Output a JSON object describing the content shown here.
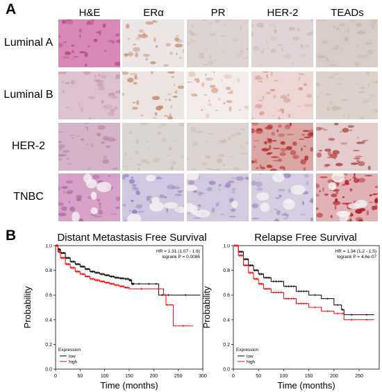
{
  "panel_a": {
    "letter": "A",
    "columns": [
      "H&E",
      "ERα",
      "PR",
      "HER-2",
      "TEADs"
    ],
    "rows": [
      "Luminal A",
      "Luminal B",
      "HER-2",
      "TNBC"
    ],
    "tiles": [
      [
        "#d88ab4",
        "#ece6e6",
        "#ddd3d1",
        "#e2d4d6",
        "#d8ccc8"
      ],
      [
        "#ddc3cf",
        "#ece5e2",
        "#f3ecea",
        "#ecd7d4",
        "#dcd2cb"
      ],
      [
        "#d3b4c8",
        "#dbd5d2",
        "#ddd3d1",
        "#dba7a5",
        "#e2cccc"
      ],
      [
        "#d6a2c6",
        "#cfc8e0",
        "#d4cadf",
        "#d6cde0",
        "#e1b2b5"
      ]
    ],
    "tile_accents": [
      [
        "#b8408a",
        "#c9957b",
        "#cbbdb8",
        "#cdbcbc",
        "#c6b8b2"
      ],
      [
        "#c79ab3",
        "#c98a6e",
        "#dca690",
        "#d89a90",
        "#cbbcb2"
      ],
      [
        "#b9889f",
        "#c9c0ba",
        "#cbbdb8",
        "#b5302f",
        "#b23a3a"
      ],
      [
        "#b06aa6",
        "#8f7fba",
        "#9a89bf",
        "#9d8ec2",
        "#b01820"
      ]
    ]
  },
  "panel_b": {
    "letter": "B",
    "colors": {
      "low": "#000000",
      "high": "#ff0000"
    },
    "plots": [
      {
        "title": "Distant Metastasis Free Survival",
        "hr_text": "HR = 1.31 (1.07 - 1.6)",
        "logrank_text": "logrank P = 0.0086",
        "ylabel": "Probability",
        "xlabel": "Time (months)",
        "legend_title": "Expression",
        "legend_low": "low",
        "legend_high": "high"
      },
      {
        "title": "Relapse Free Survival",
        "hr_text": "HR = 1.34 (1.2 - 1.5)",
        "logrank_text": "logrank P = 4.6e-07",
        "ylabel": "Probability",
        "xlabel": "Time (months)",
        "legend_title": "Expression",
        "legend_low": "low",
        "legend_high": "high"
      }
    ]
  },
  "chart_data": [
    {
      "type": "line",
      "title": "Distant Metastasis Free Survival",
      "xlabel": "Time (months)",
      "ylabel": "Probability",
      "xlim": [
        0,
        300
      ],
      "ylim": [
        0,
        1.0
      ],
      "xticks": [
        0,
        50,
        100,
        150,
        200,
        250,
        300
      ],
      "yticks": [
        0.0,
        0.2,
        0.4,
        0.6,
        0.8,
        1.0
      ],
      "legend_position": "bottom-left",
      "annotations": [
        "HR = 1.31 (1.07 - 1.6)",
        "logrank P = 0.0086"
      ],
      "series": [
        {
          "name": "low",
          "x": [
            0,
            5,
            10,
            20,
            30,
            40,
            50,
            60,
            70,
            80,
            90,
            100,
            110,
            120,
            130,
            140,
            150,
            155,
            160,
            180,
            200,
            210,
            225,
            235,
            295
          ],
          "y": [
            1.0,
            0.97,
            0.94,
            0.9,
            0.87,
            0.85,
            0.83,
            0.81,
            0.79,
            0.78,
            0.77,
            0.76,
            0.75,
            0.74,
            0.735,
            0.73,
            0.72,
            0.69,
            0.69,
            0.69,
            0.69,
            0.6,
            0.6,
            0.6,
            0.6
          ]
        },
        {
          "name": "high",
          "x": [
            0,
            5,
            10,
            20,
            30,
            40,
            50,
            60,
            70,
            80,
            90,
            100,
            110,
            120,
            130,
            140,
            150,
            200,
            220,
            225,
            230,
            240,
            280
          ],
          "y": [
            1.0,
            0.95,
            0.9,
            0.85,
            0.82,
            0.79,
            0.77,
            0.75,
            0.73,
            0.72,
            0.71,
            0.7,
            0.69,
            0.68,
            0.67,
            0.66,
            0.65,
            0.65,
            0.6,
            0.52,
            0.52,
            0.35,
            0.35
          ]
        }
      ]
    },
    {
      "type": "line",
      "title": "Relapse Free Survival",
      "xlabel": "Time (months)",
      "ylabel": "Probability",
      "xlim": [
        0,
        290
      ],
      "ylim": [
        0,
        1.0
      ],
      "xticks": [
        0,
        50,
        100,
        150,
        200,
        250
      ],
      "yticks": [
        0.0,
        0.2,
        0.4,
        0.6,
        0.8,
        1.0
      ],
      "legend_position": "bottom-left",
      "annotations": [
        "HR = 1.34 (1.2 - 1.5)",
        "logrank P = 4.6e-07"
      ],
      "series": [
        {
          "name": "low",
          "x": [
            0,
            10,
            20,
            30,
            40,
            50,
            60,
            75,
            100,
            125,
            150,
            175,
            200,
            215,
            220,
            250,
            280
          ],
          "y": [
            1.0,
            0.95,
            0.89,
            0.84,
            0.8,
            0.77,
            0.74,
            0.71,
            0.67,
            0.63,
            0.6,
            0.57,
            0.52,
            0.48,
            0.44,
            0.44,
            0.44
          ]
        },
        {
          "name": "high",
          "x": [
            0,
            10,
            20,
            30,
            40,
            50,
            60,
            75,
            100,
            125,
            150,
            175,
            200,
            215,
            220,
            250,
            280
          ],
          "y": [
            1.0,
            0.92,
            0.84,
            0.78,
            0.73,
            0.69,
            0.65,
            0.62,
            0.57,
            0.53,
            0.5,
            0.47,
            0.45,
            0.45,
            0.4,
            0.4,
            0.4
          ]
        }
      ]
    }
  ]
}
